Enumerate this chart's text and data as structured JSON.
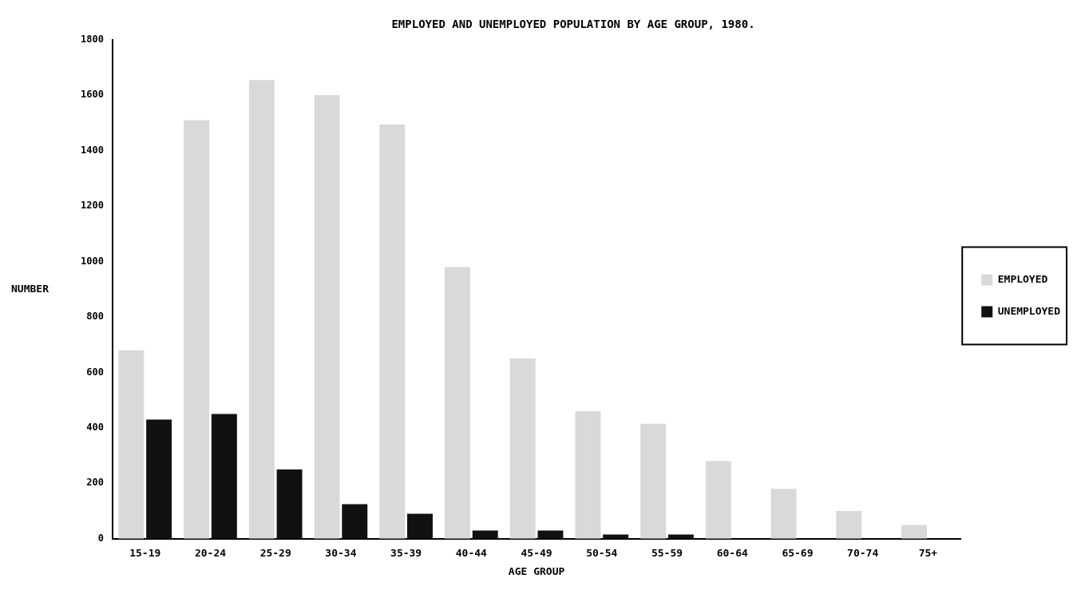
{
  "chart_data": {
    "type": "bar",
    "title": "EMPLOYED AND UNEMPLOYED POPULATION BY AGE GROUP, 1980.",
    "xlabel": "AGE GROUP",
    "ylabel": "NUMBER",
    "categories": [
      "15-19",
      "20-24",
      "25-29",
      "30-34",
      "35-39",
      "40-44",
      "45-49",
      "50-54",
      "55-59",
      "60-64",
      "65-69",
      "70-74",
      "75+"
    ],
    "series": [
      {
        "name": "EMPLOYED",
        "color": "#d9d9d9",
        "values": [
          680,
          1510,
          1655,
          1600,
          1495,
          980,
          650,
          460,
          415,
          280,
          180,
          100,
          50
        ]
      },
      {
        "name": "UNEMPLOYED",
        "color": "#111111",
        "values": [
          430,
          450,
          250,
          125,
          90,
          30,
          30,
          15,
          15,
          0,
          0,
          0,
          0
        ]
      }
    ],
    "ylim": [
      0,
      1800
    ],
    "yticks": [
      0,
      200,
      400,
      600,
      800,
      1000,
      1200,
      1400,
      1600,
      1800
    ],
    "grid": false,
    "legend": "right"
  }
}
